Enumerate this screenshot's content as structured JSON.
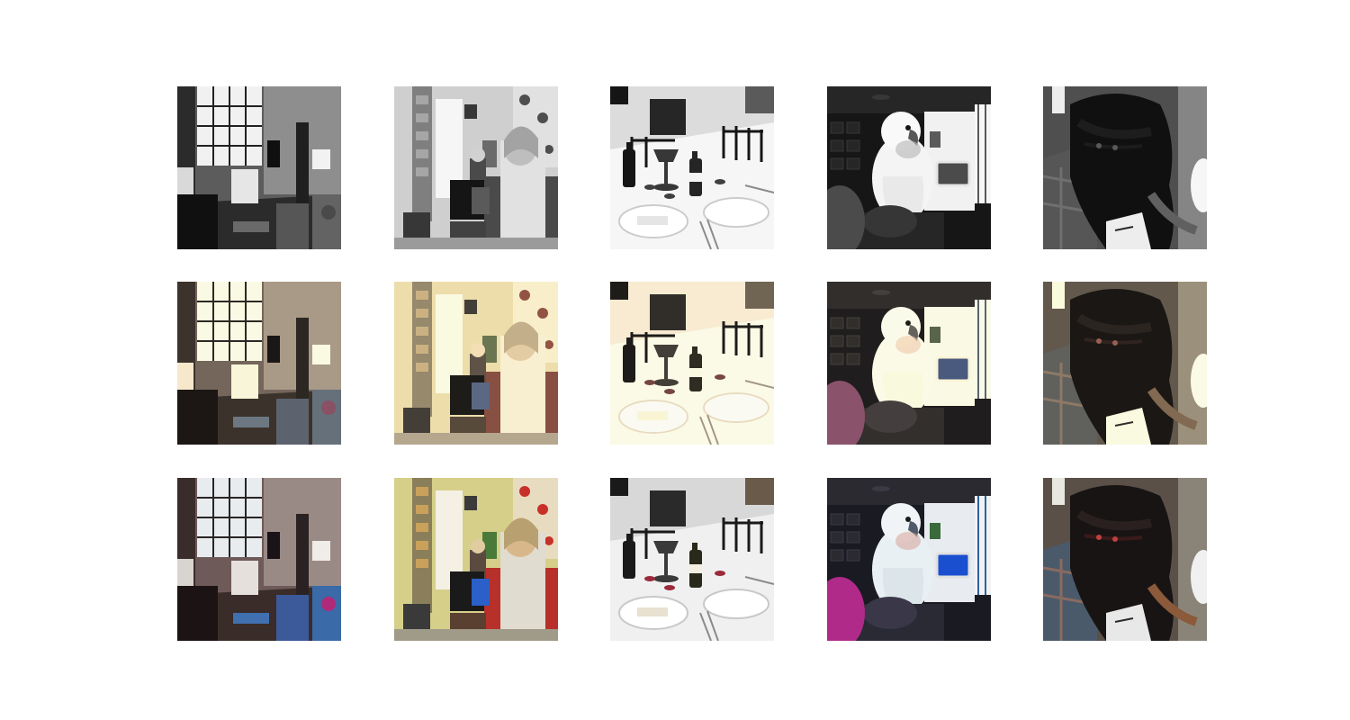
{
  "figure": {
    "rows": [
      {
        "style": "grayscale"
      },
      {
        "style": "sepia"
      },
      {
        "style": "color"
      }
    ],
    "scenes": [
      "living-room",
      "man-with-laptop",
      "dinner-table",
      "cockatoo",
      "dog"
    ]
  }
}
